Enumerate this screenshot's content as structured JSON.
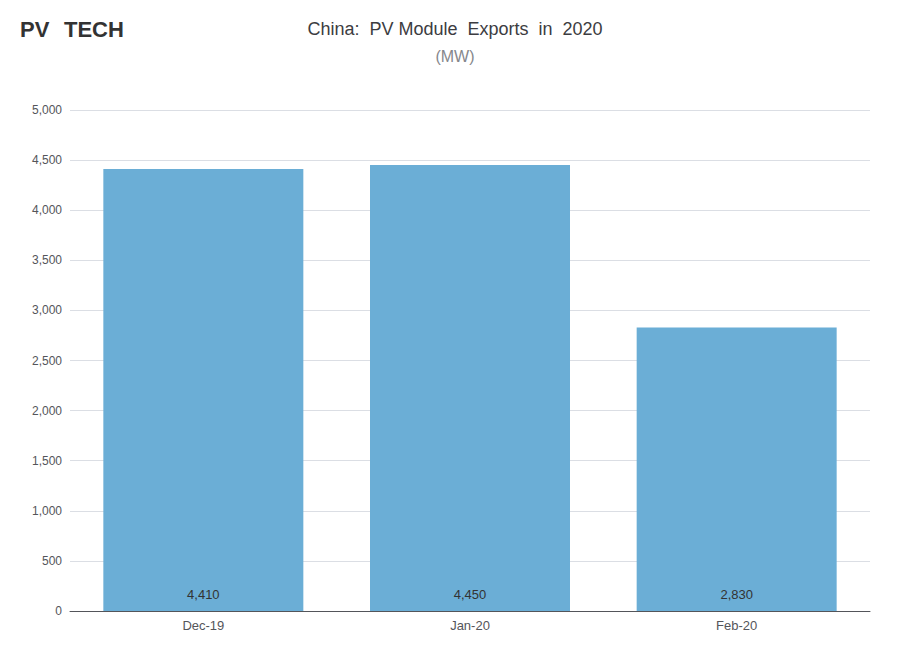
{
  "chart_data": {
    "type": "bar",
    "title": "China:  PV Module  Exports  in  2020",
    "subtitle": "(MW)",
    "categories": [
      "Dec-19",
      "Jan-20",
      "Feb-20"
    ],
    "values": [
      4410,
      4450,
      2830
    ],
    "value_labels": [
      "4,410",
      "4,450",
      "2,830"
    ],
    "data_labels": true,
    "color": "#6BAED6",
    "ylim": [
      0,
      5000
    ],
    "yticks": [
      0,
      500,
      {
        "value": 1000,
        "label": "1,000"
      },
      {
        "value": 1500,
        "label": "1,500"
      },
      {
        "value": 2000,
        "label": "2,000"
      },
      {
        "value": 2500,
        "label": "2,500"
      },
      {
        "value": 3000,
        "label": "3,000"
      },
      {
        "value": 3500,
        "label": "3,500"
      },
      {
        "value": 4000,
        "label": "4,000"
      },
      {
        "value": 4500,
        "label": "4,500"
      },
      {
        "value": 5000,
        "label": "5,000"
      }
    ],
    "grid": true,
    "annotations": [
      "PV",
      "TECH"
    ]
  }
}
